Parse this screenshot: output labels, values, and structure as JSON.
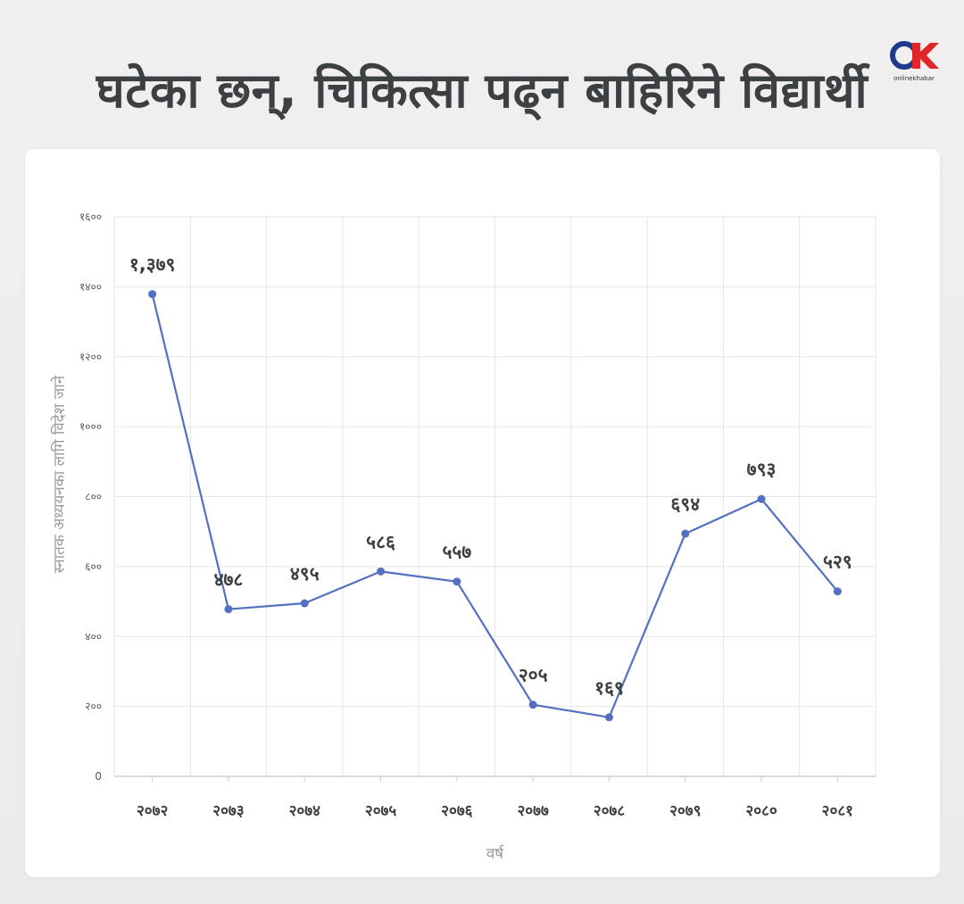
{
  "header": {
    "title": "घटेका छन्, चिकित्सा पढ्न बाहिरिने विद्यार्थी",
    "logo_text": "onlinekhabar",
    "logo_colors": {
      "ring": "#1f3a8a",
      "k": "#e0262b"
    }
  },
  "chart_data": {
    "type": "line",
    "title": "घटेका छन्, चिकित्सा पढ्न बाहिरिने विद्यार्थी",
    "xlabel": "वर्ष",
    "ylabel": "स्नातक अध्ययनका लागि विदेश जाने",
    "categories": [
      "२०७२",
      "२०७३",
      "२०७४",
      "२०७५",
      "२०७६",
      "२०७७",
      "२०७८",
      "२०७९",
      "२०८०",
      "२०८१"
    ],
    "series": [
      {
        "values": [
          1379,
          478,
          495,
          586,
          557,
          205,
          169,
          694,
          793,
          529
        ],
        "data_labels": [
          "१,३७९",
          "४७८",
          "४९५",
          "५८६",
          "५५७",
          "२०५",
          "१६९",
          "६९४",
          "७९३",
          "५२९"
        ],
        "color": "#5470c0"
      }
    ],
    "ylim": [
      0,
      1600
    ],
    "yticks": [
      0,
      200,
      400,
      600,
      800,
      1000,
      1200,
      1400,
      1600
    ],
    "ytick_labels": [
      "0",
      "२००",
      "४००",
      "६००",
      "८००",
      "१०००",
      "१२००",
      "१४००",
      "१६००"
    ],
    "grid": true,
    "legend": "none"
  }
}
